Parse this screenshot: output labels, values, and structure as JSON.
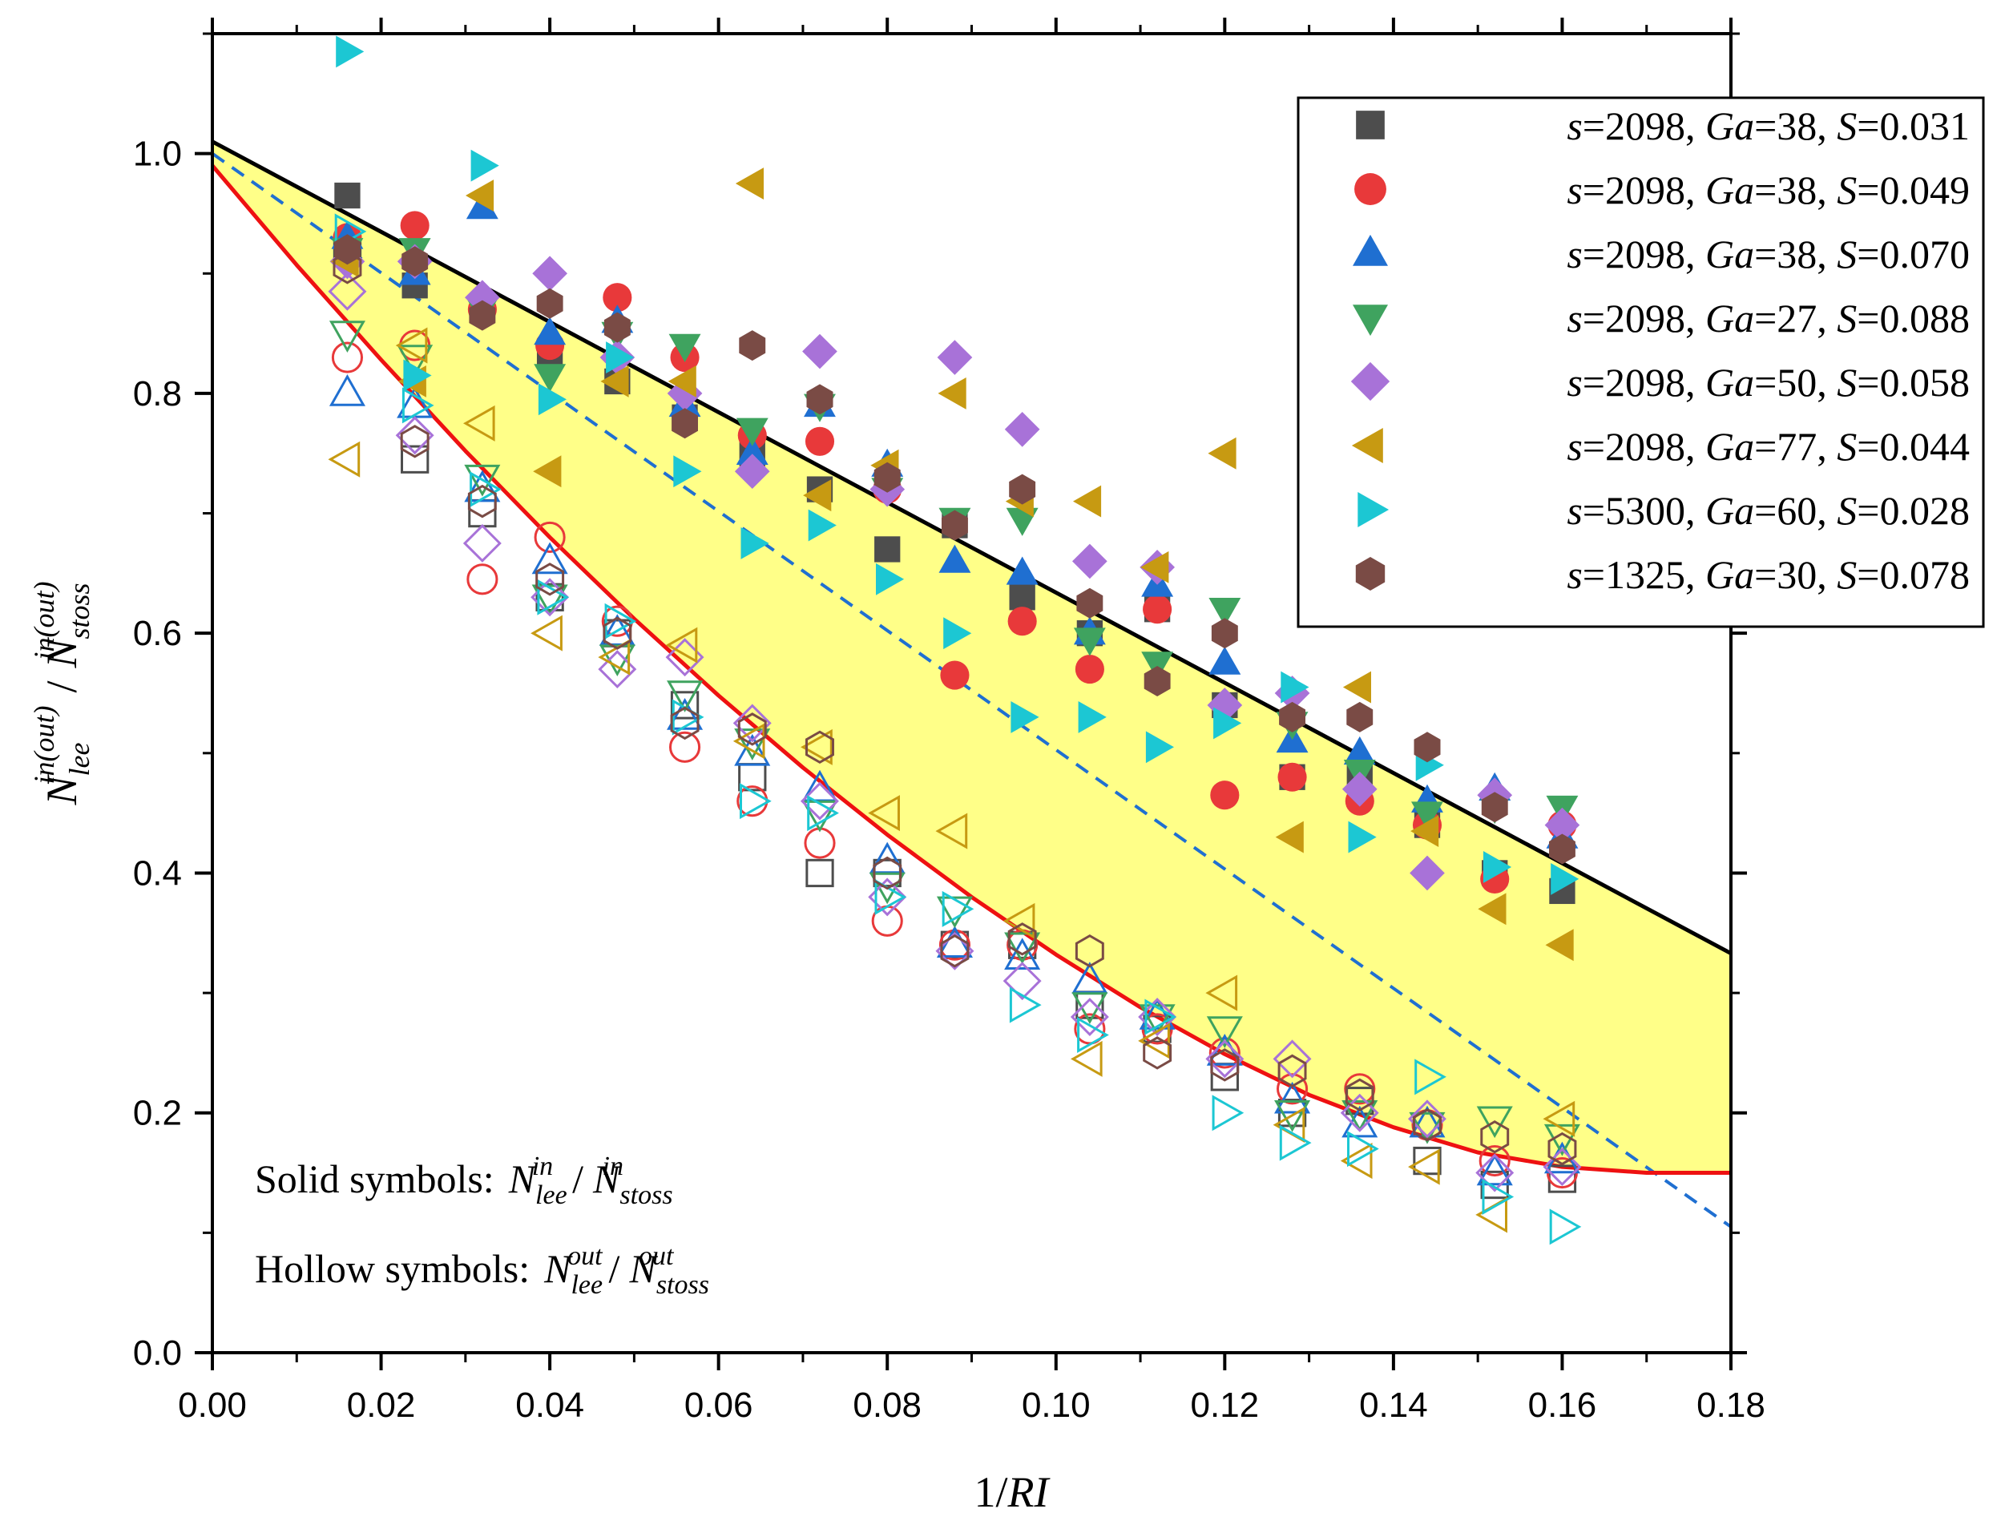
{
  "chart_data": {
    "type": "scatter",
    "title": "",
    "xlabel": "1/RI",
    "ylabel": "N_lee^in(out) / N_stoss^in(out)",
    "xlim": [
      0,
      0.18
    ],
    "ylim": [
      0,
      1.1
    ],
    "xticks": [
      0,
      0.02,
      0.04,
      0.06,
      0.08,
      0.1,
      0.12,
      0.14,
      0.16,
      0.18
    ],
    "yticks": [
      0,
      0.2,
      0.4,
      0.6,
      0.8,
      1.0
    ],
    "xtick_labels": [
      "0.00",
      "0.02",
      "0.04",
      "0.06",
      "0.08",
      "0.10",
      "0.12",
      "0.14",
      "0.16",
      "0.18"
    ],
    "ytick_labels": [
      "0.0",
      "0.2",
      "0.4",
      "0.6",
      "0.8",
      "1.0"
    ],
    "x": [
      0.016,
      0.024,
      0.032,
      0.04,
      0.048,
      0.056,
      0.064,
      0.072,
      0.08,
      0.088,
      0.096,
      0.104,
      0.112,
      0.12,
      0.128,
      0.136,
      0.144,
      0.152,
      0.16
    ],
    "legend_position": "top-right",
    "series": [
      {
        "name": "s=2098, Ga=38, S=0.031",
        "s": "2098",
        "Ga": "38",
        "S": "0.031",
        "marker": "square",
        "color": "#4d4d4d",
        "solid": [
          0.965,
          0.89,
          0.87,
          0.835,
          0.81,
          0.78,
          0.75,
          0.72,
          0.67,
          0.69,
          0.63,
          0.6,
          0.62,
          0.54,
          0.48,
          0.48,
          0.44,
          0.4,
          0.385
        ],
        "hollow": [
          0.92,
          0.745,
          0.7,
          0.63,
          0.6,
          0.54,
          0.48,
          0.4,
          0.4,
          0.34,
          0.34,
          0.29,
          0.27,
          0.23,
          0.2,
          0.21,
          0.16,
          0.14,
          0.145
        ]
      },
      {
        "name": "s=2098, Ga=38, S=0.049",
        "s": "2098",
        "Ga": "38",
        "S": "0.049",
        "marker": "circle",
        "color": "#e8393a",
        "solid": [
          0.93,
          0.94,
          0.87,
          0.84,
          0.88,
          0.83,
          0.765,
          0.76,
          0.72,
          0.565,
          0.61,
          0.57,
          0.62,
          0.465,
          0.48,
          0.46,
          0.44,
          0.395,
          0.44
        ],
        "hollow": [
          0.83,
          0.84,
          0.645,
          0.68,
          0.61,
          0.505,
          0.46,
          0.425,
          0.36,
          0.34,
          0.34,
          0.27,
          0.27,
          0.25,
          0.22,
          0.22,
          0.19,
          0.16,
          0.15
        ]
      },
      {
        "name": "s=2098, Ga=38, S=0.070",
        "s": "2098",
        "Ga": "38",
        "S": "0.070",
        "marker": "triangle-up",
        "color": "#1f6fd1",
        "solid": [
          0.93,
          0.9,
          0.955,
          0.85,
          0.86,
          0.79,
          0.75,
          0.79,
          0.74,
          0.66,
          0.65,
          0.6,
          0.64,
          0.575,
          0.51,
          0.5,
          0.46,
          0.47,
          0.43
        ],
        "hollow": [
          0.8,
          0.79,
          0.72,
          0.66,
          0.6,
          0.53,
          0.5,
          0.47,
          0.41,
          0.34,
          0.33,
          0.31,
          0.28,
          0.25,
          0.21,
          0.19,
          0.19,
          0.15,
          0.16
        ]
      },
      {
        "name": "s=2098, Ga=27, S=0.088",
        "s": "2098",
        "Ga": "27",
        "S": "0.088",
        "marker": "triangle-down",
        "color": "#3fa35f",
        "solid": [
          0.92,
          0.92,
          0.87,
          0.815,
          0.85,
          0.84,
          0.77,
          0.79,
          0.72,
          0.695,
          0.695,
          0.595,
          0.575,
          0.62,
          0.525,
          0.485,
          0.45,
          0.455,
          0.455
        ],
        "hollow": [
          0.85,
          0.83,
          0.73,
          0.63,
          0.58,
          0.55,
          0.51,
          0.45,
          0.39,
          0.37,
          0.34,
          0.29,
          0.28,
          0.27,
          0.2,
          0.2,
          0.19,
          0.195,
          0.18
        ]
      },
      {
        "name": "s=2098, Ga=50, S=0.058",
        "s": "2098",
        "Ga": "50",
        "S": "0.058",
        "marker": "diamond",
        "color": "#a872d8",
        "solid": [
          0.91,
          0.91,
          0.88,
          0.9,
          0.83,
          0.8,
          0.735,
          0.835,
          0.72,
          0.83,
          0.77,
          0.66,
          0.655,
          0.54,
          0.55,
          0.47,
          0.4,
          0.465,
          0.44
        ],
        "hollow": [
          0.885,
          0.765,
          0.675,
          0.63,
          0.57,
          0.58,
          0.525,
          0.46,
          0.38,
          0.335,
          0.31,
          0.28,
          0.28,
          0.245,
          0.245,
          0.2,
          0.195,
          0.15,
          0.155
        ]
      },
      {
        "name": "s=2098, Ga=77, S=0.044",
        "s": "2098",
        "Ga": "77",
        "S": "0.044",
        "marker": "triangle-left",
        "color": "#c79a12",
        "solid": [
          0.91,
          0.81,
          0.965,
          0.735,
          0.81,
          0.81,
          0.975,
          0.715,
          0.74,
          0.8,
          0.71,
          0.71,
          0.655,
          0.75,
          0.43,
          0.555,
          0.435,
          0.37,
          0.34
        ],
        "hollow": [
          0.745,
          0.84,
          0.775,
          0.6,
          0.58,
          0.59,
          0.51,
          0.505,
          0.45,
          0.435,
          0.36,
          0.245,
          0.26,
          0.3,
          0.19,
          0.16,
          0.155,
          0.115,
          0.195
        ]
      },
      {
        "name": "s=5300, Ga=60, S=0.028",
        "s": "5300",
        "Ga": "60",
        "S": "0.028",
        "marker": "triangle-right",
        "color": "#1cc7d3",
        "solid": [
          1.085,
          0.815,
          0.99,
          0.795,
          0.83,
          0.735,
          0.675,
          0.69,
          0.645,
          0.6,
          0.53,
          0.53,
          0.505,
          0.525,
          0.555,
          0.43,
          0.49,
          0.405,
          0.395
        ],
        "hollow": [
          0.935,
          0.79,
          0.72,
          0.63,
          0.61,
          0.53,
          0.46,
          0.45,
          0.38,
          0.37,
          0.29,
          0.265,
          0.28,
          0.2,
          0.175,
          0.17,
          0.23,
          0.13,
          0.105
        ]
      },
      {
        "name": "s=1325, Ga=30, S=0.078",
        "s": "1325",
        "Ga": "30",
        "S": "0.078",
        "marker": "hexagon",
        "color": "#7a4b45",
        "solid": [
          0.92,
          0.91,
          0.865,
          0.875,
          0.855,
          0.775,
          0.84,
          0.795,
          0.73,
          0.69,
          0.72,
          0.625,
          0.56,
          0.6,
          0.53,
          0.53,
          0.505,
          0.455,
          0.42
        ],
        "hollow": [
          0.905,
          0.76,
          0.71,
          0.645,
          0.6,
          0.525,
          0.52,
          0.505,
          0.4,
          0.335,
          0.345,
          0.335,
          0.25,
          0.24,
          0.235,
          0.215,
          0.19,
          0.18,
          0.17
        ]
      }
    ],
    "fits": [
      {
        "name": "upper linear fit",
        "color": "#000000",
        "style": "solid",
        "x": [
          0,
          0.18
        ],
        "y": [
          1.01,
          0.333
        ]
      },
      {
        "name": "middle linear fit",
        "color": "#1f6fd1",
        "style": "dashed",
        "x": [
          0,
          0.18
        ],
        "y": [
          1.0,
          0.105
        ]
      },
      {
        "name": "lower curve fit",
        "color": "#ee1111",
        "style": "solid",
        "x": [
          0,
          0.01,
          0.02,
          0.03,
          0.04,
          0.05,
          0.06,
          0.07,
          0.08,
          0.09,
          0.1,
          0.11,
          0.12,
          0.13,
          0.14,
          0.15,
          0.16,
          0.17,
          0.18
        ],
        "y": [
          0.99,
          0.907,
          0.828,
          0.752,
          0.68,
          0.612,
          0.548,
          0.488,
          0.432,
          0.38,
          0.332,
          0.288,
          0.249,
          0.215,
          0.188,
          0.167,
          0.155,
          0.15,
          0.15
        ]
      }
    ],
    "shaded_region": {
      "between": [
        "upper linear fit",
        "lower curve fit"
      ],
      "color": "#ffff88"
    },
    "annotations": {
      "solid_line": "Solid symbols:",
      "hollow_line": "Hollow symbols:",
      "solid_expr": {
        "n_sup": "in",
        "n_sub": "lee",
        "d_sup": "in",
        "d_sub": "stoss"
      },
      "hollow_expr": {
        "n_sup": "out",
        "n_sub": "lee",
        "d_sup": "out",
        "d_sub": "stoss"
      }
    }
  },
  "labels": {
    "xlabel_prefix": "1/",
    "xlabel_var": "RI",
    "ylabel_n": "N",
    "ylabel_n_sub": "lee",
    "ylabel_n_sup": "in(out)",
    "ylabel_slash": "/",
    "ylabel_d": "N",
    "ylabel_d_sub": "stoss",
    "ylabel_d_sup": "in(out)",
    "legend_s": "s",
    "legend_ga": "Ga",
    "legend_S": "S",
    "slash": "/",
    "n_sym": "N"
  }
}
